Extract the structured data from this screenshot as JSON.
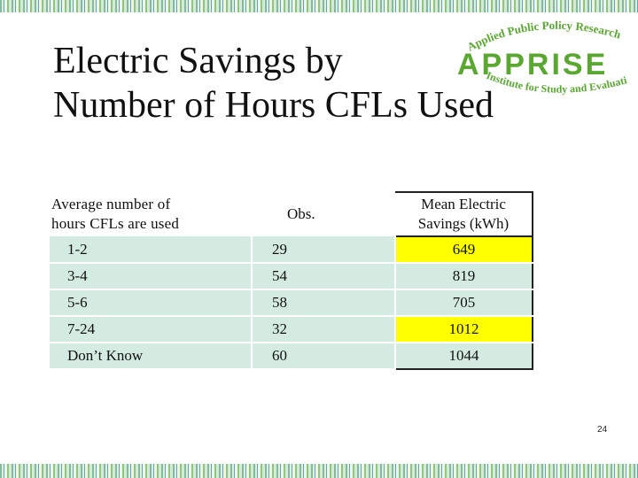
{
  "title": {
    "line1": "Electric Savings by",
    "line2": "Number of Hours CFLs Used"
  },
  "logo": {
    "top_text": "Applied Public Policy Research",
    "main_text": "APPRISE",
    "bottom_text": "Institute for Study and Evaluation",
    "color": "#5aa832"
  },
  "table": {
    "headers": {
      "col1_line1": "Average number of",
      "col1_line2": "hours CFLs are used",
      "col2": "Obs.",
      "col3_line1": "Mean Electric",
      "col3_line2": "Savings (kWh)"
    },
    "rows": [
      {
        "hours": "1-2",
        "obs": "29",
        "savings": "649",
        "highlight": true
      },
      {
        "hours": "3-4",
        "obs": "54",
        "savings": "819",
        "highlight": false
      },
      {
        "hours": "5-6",
        "obs": "58",
        "savings": "705",
        "highlight": false
      },
      {
        "hours": "7-24",
        "obs": "32",
        "savings": "1012",
        "highlight": true
      },
      {
        "hours": "Don’t Know",
        "obs": "60",
        "savings": "1044",
        "highlight": false
      }
    ],
    "row_color": "#d4ebe2",
    "highlight_color": "#ffff00"
  },
  "page_number": "24"
}
